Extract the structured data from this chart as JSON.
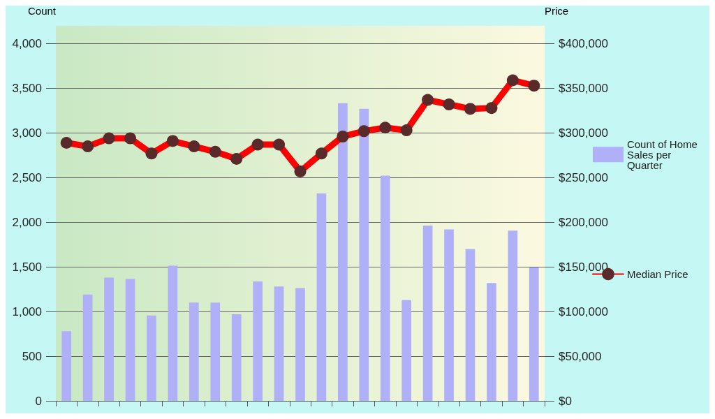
{
  "chart_data": {
    "type": "bar",
    "ylabel": "Count",
    "y2label": "Price",
    "categories": [
      null,
      null,
      null,
      null,
      null,
      null,
      null,
      null,
      null,
      null,
      null,
      null,
      null,
      null,
      null,
      null,
      null,
      null,
      null,
      null,
      null,
      null,
      null
    ],
    "series": [
      {
        "name": "Count of Home Sales per Quarter",
        "color": "#b0b0f8",
        "values": [
          780,
          1190,
          1380,
          1365,
          957,
          1514,
          1100,
          1100,
          969,
          1337,
          1280,
          1263,
          2323,
          3334,
          3271,
          2523,
          1129,
          1963,
          1920,
          1700,
          1320,
          1906,
          1494
        ]
      },
      {
        "name": "Median Price",
        "type": "line",
        "axis": "y2",
        "color": "#ff0000",
        "values": [
          289000,
          285000,
          294000,
          294000,
          277000,
          291000,
          285000,
          279000,
          271000,
          287000,
          287000,
          257000,
          277000,
          296000,
          302000,
          306000,
          303000,
          337000,
          332000,
          327000,
          328000,
          359000,
          353000
        ]
      }
    ],
    "ylim": [
      0,
      4200
    ],
    "yticks": [
      0,
      500,
      {
        "value": 1000,
        "label": "1,000"
      },
      {
        "value": 1500,
        "label": "1,500"
      },
      {
        "value": 2000,
        "label": "2,000"
      },
      {
        "value": 2500,
        "label": "2,500"
      },
      {
        "value": 3000,
        "label": "3,000"
      },
      {
        "value": 3500,
        "label": "3,500"
      },
      {
        "value": 4000,
        "label": "4,000"
      }
    ],
    "y2lim": [
      0,
      420000
    ],
    "y2ticks": [
      {
        "value": 0,
        "label": "$0"
      },
      {
        "value": 50000,
        "label": "$50,000"
      },
      {
        "value": 100000,
        "label": "$100,000"
      },
      {
        "value": 150000,
        "label": "$150,000"
      },
      {
        "value": 200000,
        "label": "$200,000"
      },
      {
        "value": 250000,
        "label": "$250,000"
      },
      {
        "value": 300000,
        "label": "$300,000"
      },
      {
        "value": 350000,
        "label": "$350,000"
      },
      {
        "value": 400000,
        "label": "$400,000"
      }
    ],
    "grid": "y",
    "legend": "right",
    "marker": "circle",
    "tick_labels": "y"
  }
}
